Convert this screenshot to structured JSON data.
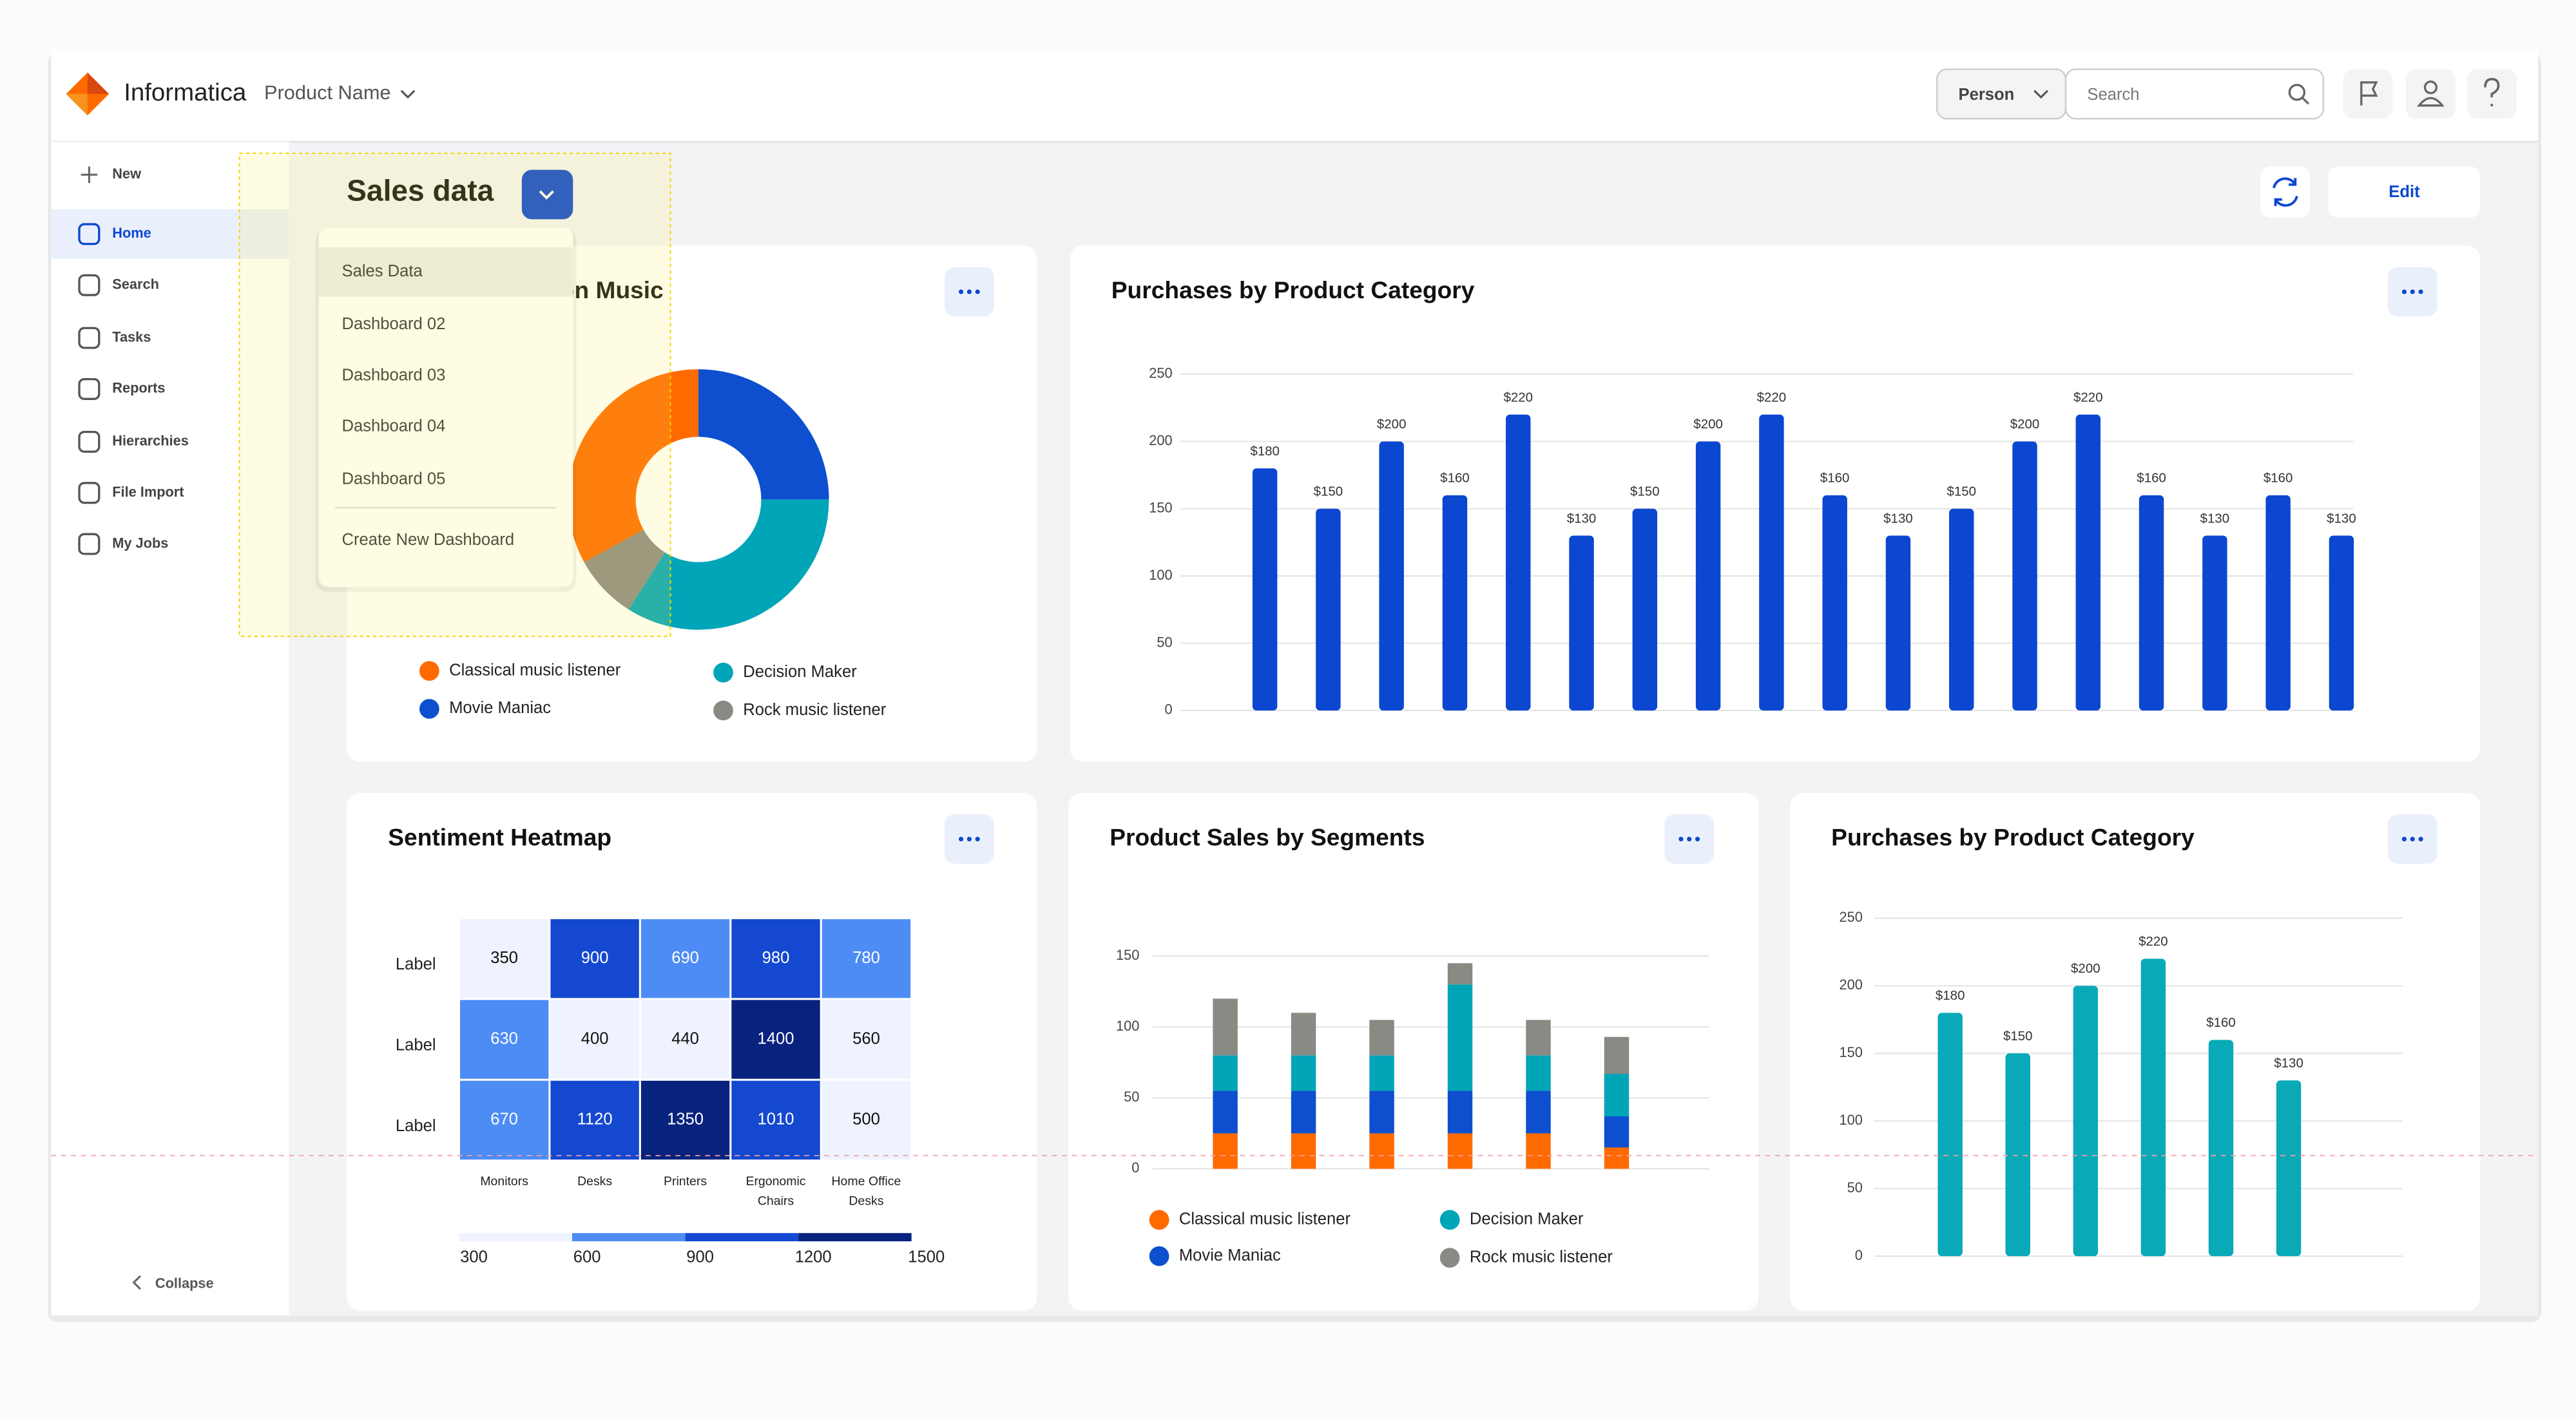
{
  "header": {
    "brand": "Informatica",
    "product": "Product Name",
    "person_filter": "Person",
    "search_placeholder": "Search"
  },
  "sidebar": {
    "items": [
      "New",
      "Home",
      "Search",
      "Tasks",
      "Reports",
      "Hierarchies",
      "File Import",
      "My Jobs"
    ],
    "active": 1,
    "collapse": "Collapse"
  },
  "page": {
    "title": "Sales data",
    "edit": "Edit"
  },
  "dropdown": {
    "items": [
      "Sales Data",
      "Dashboard 02",
      "Dashboard 03",
      "Dashboard 04",
      "Dashboard 05"
    ],
    "selected": 0,
    "create": "Create New Dashboard"
  },
  "chart_data": [
    {
      "type": "pie",
      "title": "on Music",
      "categories": [
        "Classical music listener",
        "Movie Maniac",
        "Decision Maker",
        "Rock music listener"
      ],
      "values": [
        33,
        25,
        34,
        8
      ],
      "colors": [
        "#ff6a00",
        "#0d4fcf",
        "#00a5b8",
        "#8a8a84"
      ]
    },
    {
      "type": "bar",
      "title": "Purchases by Product Category",
      "values": [
        180,
        150,
        200,
        160,
        220,
        130,
        150,
        200,
        220,
        160,
        130,
        150,
        200,
        220,
        160,
        130,
        160,
        130
      ],
      "value_labels": [
        "$180",
        "$150",
        "$200",
        "$160",
        "$220",
        "$130",
        "$150",
        "$200",
        "$220",
        "$160",
        "$130",
        "$150",
        "$200",
        "$220",
        "$160",
        "$130",
        "$160",
        "$130"
      ],
      "color": "#0b47d1",
      "ylim": [
        0,
        250
      ],
      "yticks": [
        0,
        50,
        100,
        150,
        200,
        250
      ],
      "grid": true
    },
    {
      "type": "heatmap",
      "title": "Sentiment Heatmap",
      "rows": [
        "Label",
        "Label",
        "Label"
      ],
      "columns": [
        "Monitors",
        "Desks",
        "Printers",
        "Ergonomic Chairs",
        "Home Office Desks"
      ],
      "values": [
        [
          350,
          900,
          690,
          980,
          780
        ],
        [
          630,
          400,
          440,
          1400,
          560
        ],
        [
          670,
          1120,
          1350,
          1010,
          500
        ]
      ],
      "colorbar_ticks": [
        300,
        600,
        900,
        1200,
        1500
      ],
      "colors": [
        "#eef3ff",
        "#4d8cf5",
        "#1448d0",
        "#08237e"
      ]
    },
    {
      "type": "stacked_bar",
      "title": "Product Sales by Segments",
      "series": [
        {
          "name": "Classical music listener",
          "color": "#ff6a00",
          "values": [
            25,
            25,
            25,
            25,
            25,
            15
          ]
        },
        {
          "name": "Movie Maniac",
          "color": "#0d4fcf",
          "values": [
            30,
            30,
            30,
            30,
            30,
            22
          ]
        },
        {
          "name": "Decision Maker",
          "color": "#00a5b8",
          "values": [
            25,
            25,
            25,
            75,
            25,
            30
          ]
        },
        {
          "name": "Rock music listener",
          "color": "#8a8a84",
          "values": [
            40,
            30,
            25,
            15,
            25,
            26
          ]
        }
      ],
      "ylim": [
        0,
        150
      ],
      "yticks": [
        0,
        50,
        100,
        150
      ],
      "grid": true
    },
    {
      "type": "bar",
      "title": "Purchases by Product Category",
      "values": [
        180,
        150,
        200,
        220,
        160,
        130
      ],
      "value_labels": [
        "$180",
        "$150",
        "$200",
        "$220",
        "$160",
        "$130"
      ],
      "color": "#0aa9b8",
      "ylim": [
        0,
        250
      ],
      "yticks": [
        0,
        50,
        100,
        150,
        200,
        250
      ],
      "grid": true
    }
  ]
}
